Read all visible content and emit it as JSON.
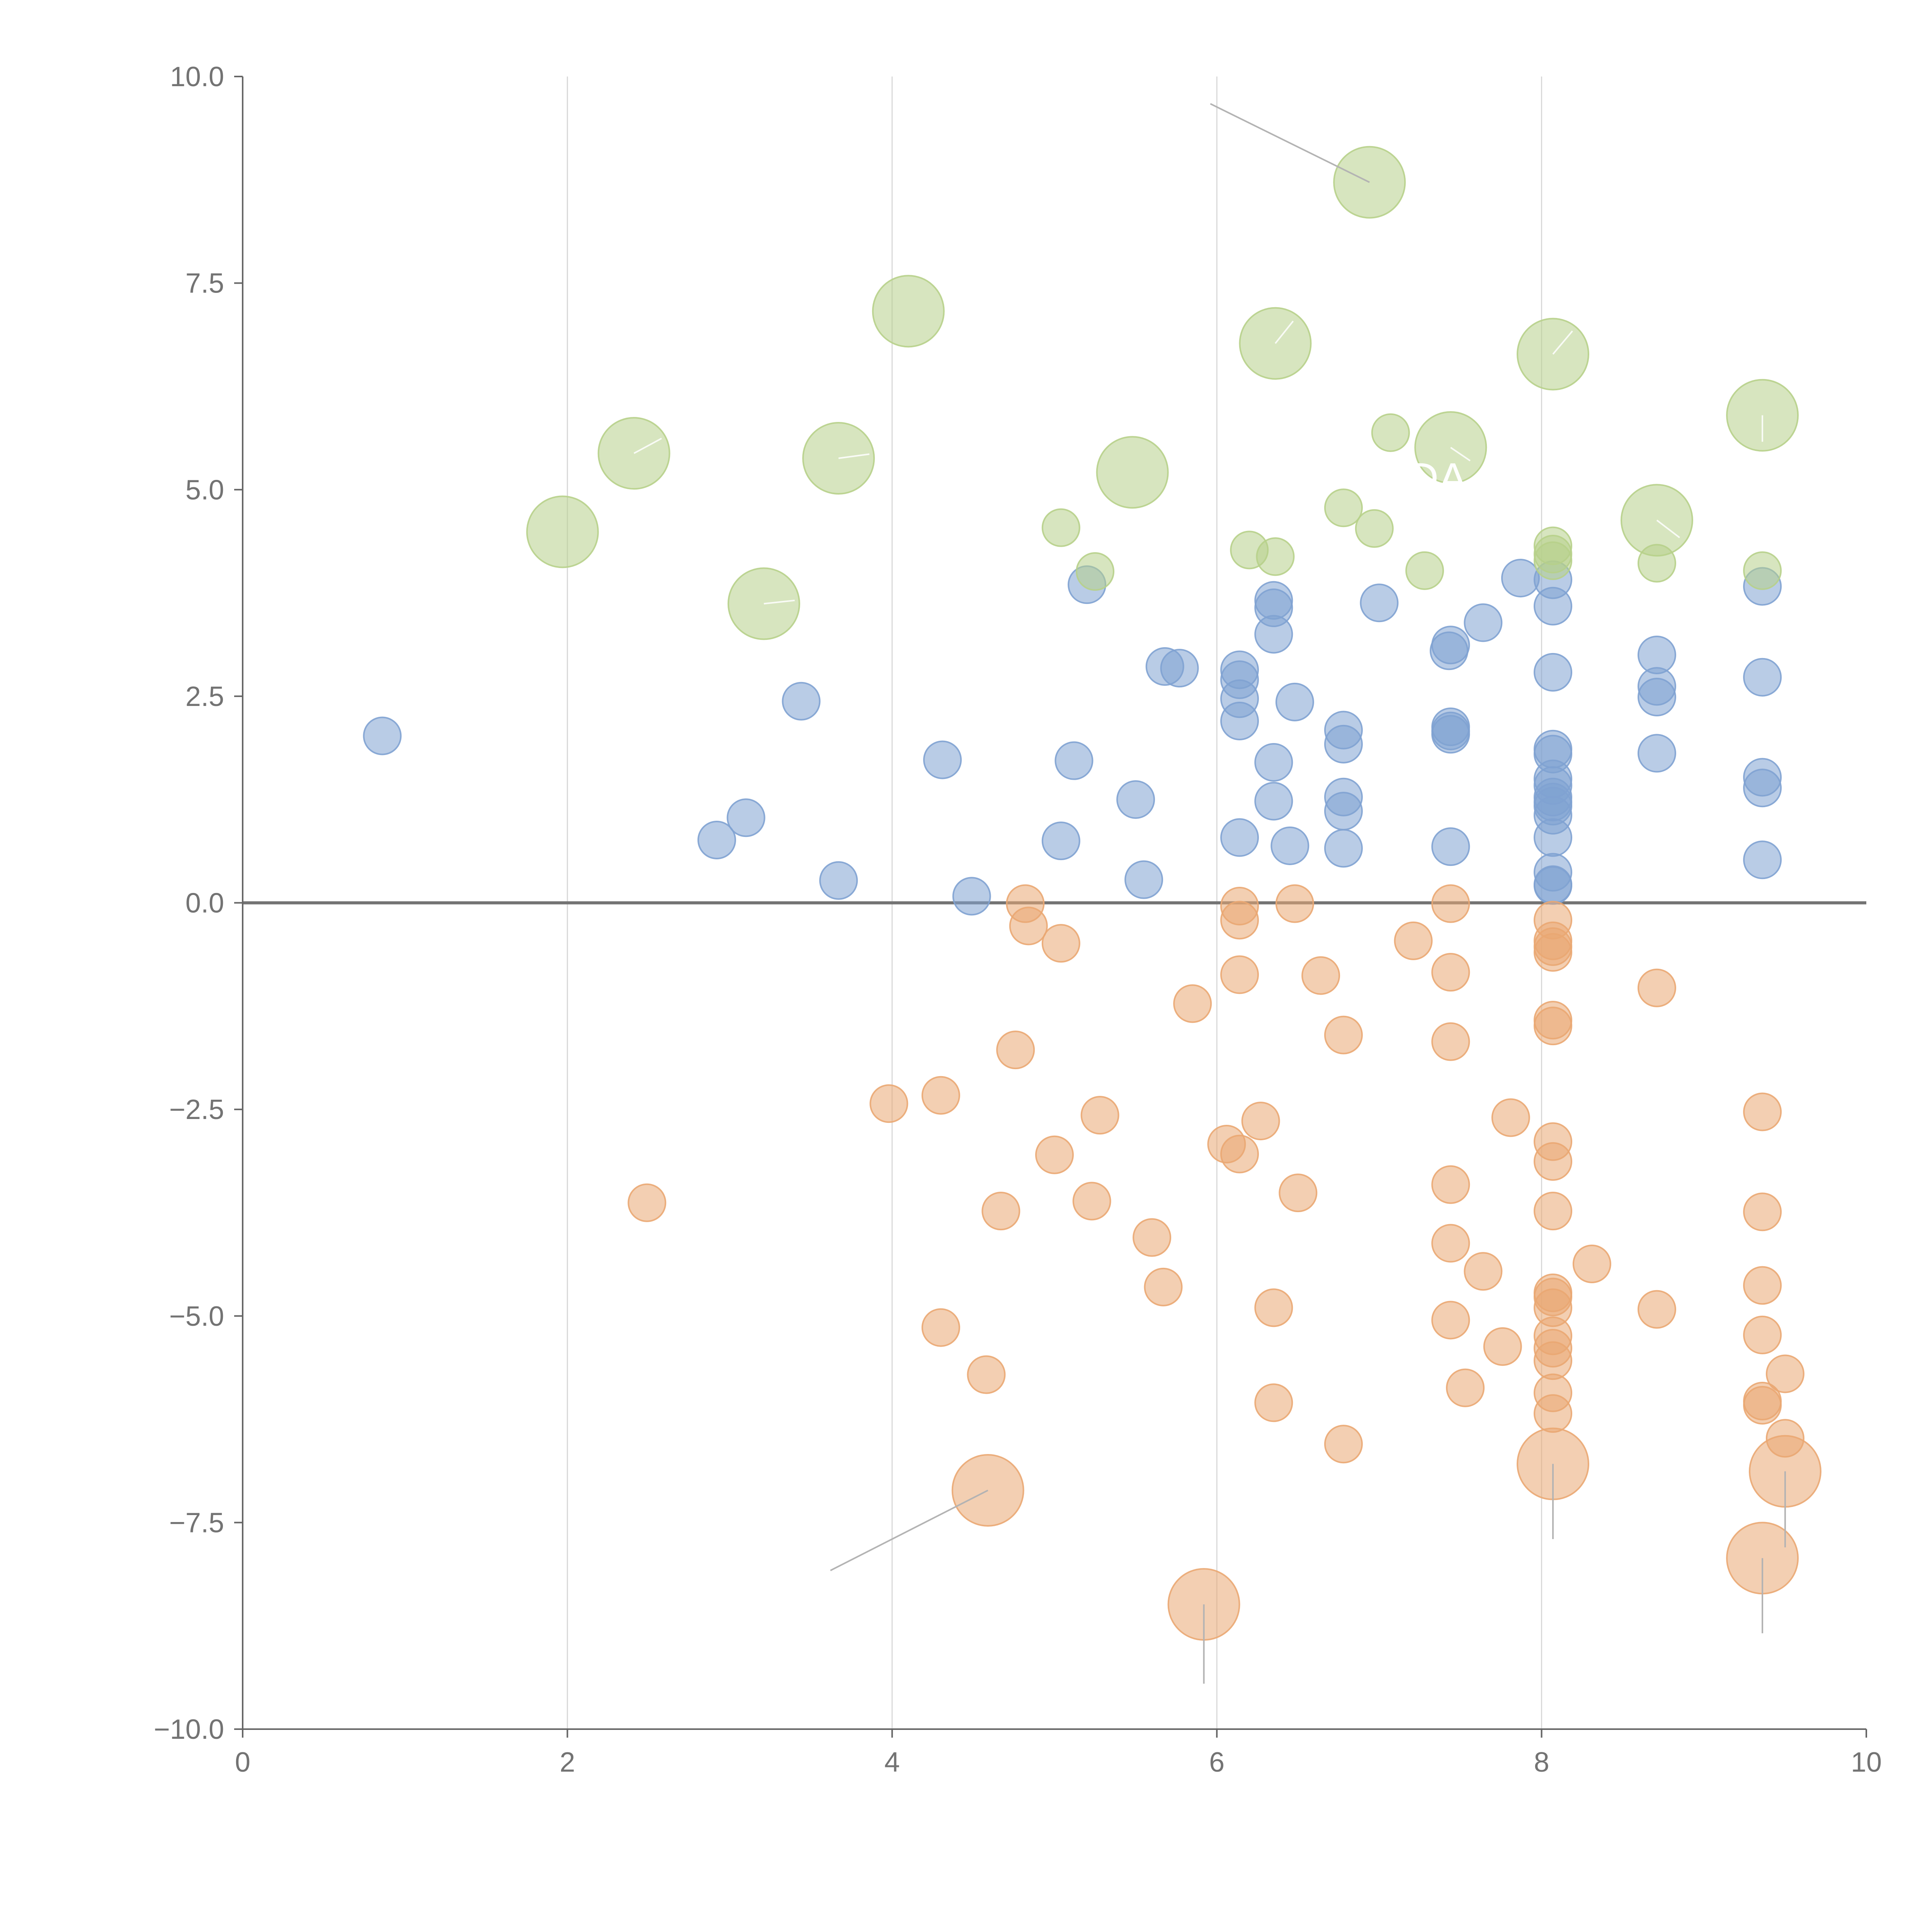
{
  "chart_data": {
    "type": "scatter",
    "title": "",
    "xlabel": "",
    "ylabel": "",
    "xlim": [
      0,
      10
    ],
    "ylim": [
      -10,
      10
    ],
    "x_ticks": [
      0,
      2,
      4,
      6,
      8,
      10
    ],
    "x_tick_labels": [
      "0",
      "2",
      "4",
      "6",
      "8",
      "10"
    ],
    "y_ticks": [
      -10,
      -7.5,
      -5,
      -2.5,
      0,
      2.5,
      5,
      7.5,
      10
    ],
    "y_tick_labels": [
      "−10.0",
      "−7.5",
      "−5.0",
      "−2.5",
      "0.0",
      "2.5",
      "5.0",
      "7.5",
      "10.0"
    ],
    "vertical_gridlines_at": [
      2,
      4,
      6,
      8
    ],
    "reference_line_y": 0,
    "colors": {
      "positive": "#7fa2d1",
      "negative": "#eaa772",
      "highlight": "#b7d08a",
      "axis": "#666666",
      "grid": "#d9d9d9",
      "tick_text": "#737373",
      "leader": "#b3b3b3"
    },
    "annotations": [
      "DA"
    ],
    "series": [
      {
        "name": "positive",
        "color_key": "positive",
        "points": [
          [
            0.86,
            2.02
          ],
          [
            2.92,
            0.76
          ],
          [
            3.1,
            1.03
          ],
          [
            3.44,
            2.44
          ],
          [
            3.67,
            0.27
          ],
          [
            4.31,
            1.73
          ],
          [
            4.49,
            0.08
          ],
          [
            5.04,
            0.75
          ],
          [
            5.12,
            1.72
          ],
          [
            5.2,
            3.85
          ],
          [
            5.5,
            1.25
          ],
          [
            5.55,
            0.28
          ],
          [
            5.68,
            2.86
          ],
          [
            5.77,
            2.84
          ],
          [
            6.14,
            2.82
          ],
          [
            6.14,
            2.7
          ],
          [
            6.14,
            2.47
          ],
          [
            6.14,
            2.2
          ],
          [
            6.14,
            0.79
          ],
          [
            6.35,
            3.66
          ],
          [
            6.35,
            3.57
          ],
          [
            6.35,
            3.25
          ],
          [
            6.35,
            1.7
          ],
          [
            6.35,
            1.23
          ],
          [
            6.45,
            0.69
          ],
          [
            6.48,
            2.43
          ],
          [
            6.78,
            2.09
          ],
          [
            6.78,
            1.92
          ],
          [
            6.78,
            1.28
          ],
          [
            6.78,
            1.11
          ],
          [
            6.78,
            0.66
          ],
          [
            7.0,
            3.63
          ],
          [
            7.43,
            3.05
          ],
          [
            7.44,
            3.12
          ],
          [
            7.44,
            2.13
          ],
          [
            7.44,
            2.08
          ],
          [
            7.44,
            2.04
          ],
          [
            7.44,
            0.68
          ],
          [
            7.64,
            3.39
          ],
          [
            7.87,
            3.93
          ],
          [
            8.07,
            3.91
          ],
          [
            8.07,
            3.59
          ],
          [
            8.07,
            2.79
          ],
          [
            8.07,
            1.86
          ],
          [
            8.07,
            1.8
          ],
          [
            8.07,
            1.5
          ],
          [
            8.07,
            1.42
          ],
          [
            8.07,
            1.28
          ],
          [
            8.07,
            1.22
          ],
          [
            8.07,
            1.17
          ],
          [
            8.07,
            1.06
          ],
          [
            8.07,
            0.79
          ],
          [
            8.07,
            0.37
          ],
          [
            8.07,
            0.22
          ],
          [
            8.07,
            0.21
          ],
          [
            8.71,
            3.0
          ],
          [
            8.71,
            2.62
          ],
          [
            8.71,
            2.49
          ],
          [
            8.71,
            1.81
          ],
          [
            9.36,
            3.83
          ],
          [
            9.36,
            2.73
          ],
          [
            9.36,
            1.52
          ],
          [
            9.36,
            1.39
          ],
          [
            9.36,
            0.52
          ]
        ]
      },
      {
        "name": "negative",
        "color_key": "negative",
        "points": [
          [
            2.49,
            -3.63
          ],
          [
            3.98,
            -2.43
          ],
          [
            4.3,
            -2.33
          ],
          [
            4.3,
            -5.14
          ],
          [
            4.58,
            -5.71
          ],
          [
            4.67,
            -3.73
          ],
          [
            4.76,
            -1.78
          ],
          [
            4.82,
            -0.01
          ],
          [
            4.84,
            -0.28
          ],
          [
            5.04,
            -0.49
          ],
          [
            5.0,
            -3.05
          ],
          [
            5.23,
            -3.61
          ],
          [
            5.28,
            -2.57
          ],
          [
            5.6,
            -4.05
          ],
          [
            5.67,
            -4.65
          ],
          [
            5.85,
            -1.22
          ],
          [
            6.06,
            -2.92
          ],
          [
            6.14,
            -3.04
          ],
          [
            6.14,
            -0.04
          ],
          [
            6.14,
            -0.21
          ],
          [
            6.14,
            -0.87
          ],
          [
            6.27,
            -2.64
          ],
          [
            6.35,
            -4.9
          ],
          [
            6.35,
            -6.05
          ],
          [
            6.48,
            -0.01
          ],
          [
            6.5,
            -3.51
          ],
          [
            6.64,
            -0.88
          ],
          [
            6.78,
            -1.6
          ],
          [
            6.78,
            -6.55
          ],
          [
            7.21,
            -0.46
          ],
          [
            7.44,
            -0.01
          ],
          [
            7.44,
            -0.84
          ],
          [
            7.44,
            -1.68
          ],
          [
            7.44,
            -3.41
          ],
          [
            7.44,
            -4.12
          ],
          [
            7.44,
            -5.05
          ],
          [
            7.53,
            -5.87
          ],
          [
            7.64,
            -4.46
          ],
          [
            7.76,
            -5.37
          ],
          [
            7.81,
            -2.6
          ],
          [
            8.07,
            -0.21
          ],
          [
            8.07,
            -0.46
          ],
          [
            8.07,
            -0.53
          ],
          [
            8.07,
            -0.6
          ],
          [
            8.07,
            -1.42
          ],
          [
            8.07,
            -1.49
          ],
          [
            8.07,
            -2.89
          ],
          [
            8.07,
            -3.13
          ],
          [
            8.07,
            -3.73
          ],
          [
            8.07,
            -4.72
          ],
          [
            8.07,
            -4.77
          ],
          [
            8.07,
            -4.9
          ],
          [
            8.07,
            -5.24
          ],
          [
            8.07,
            -5.39
          ],
          [
            8.07,
            -5.54
          ],
          [
            8.07,
            -5.93
          ],
          [
            8.07,
            -6.18
          ],
          [
            8.31,
            -4.37
          ],
          [
            8.71,
            -1.03
          ],
          [
            8.71,
            -4.92
          ],
          [
            9.36,
            -2.53
          ],
          [
            9.36,
            -3.74
          ],
          [
            9.36,
            -4.63
          ],
          [
            9.36,
            -5.23
          ],
          [
            9.36,
            -6.03
          ],
          [
            9.36,
            -6.08
          ],
          [
            9.5,
            -5.7
          ],
          [
            9.5,
            -6.48
          ]
        ]
      },
      {
        "name": "highlight",
        "color_key": "highlight",
        "points": [
          [
            5.04,
            4.54
          ],
          [
            5.25,
            4.01
          ],
          [
            6.2,
            4.27
          ],
          [
            6.36,
            4.19
          ],
          [
            6.78,
            4.78
          ],
          [
            6.97,
            4.53
          ],
          [
            7.07,
            5.69
          ],
          [
            7.28,
            4.02
          ],
          [
            8.07,
            4.32
          ],
          [
            8.07,
            4.22
          ],
          [
            8.07,
            4.14
          ],
          [
            8.71,
            4.11
          ],
          [
            9.36,
            4.02
          ]
        ]
      }
    ],
    "large_points": [
      {
        "x": 1.97,
        "y": 4.49,
        "series": "highlight"
      },
      {
        "x": 2.41,
        "y": 5.44,
        "series": "highlight"
      },
      {
        "x": 3.21,
        "y": 3.62,
        "series": "highlight"
      },
      {
        "x": 3.67,
        "y": 5.38,
        "series": "highlight"
      },
      {
        "x": 4.1,
        "y": 7.16,
        "series": "highlight"
      },
      {
        "x": 5.48,
        "y": 5.21,
        "series": "highlight"
      },
      {
        "x": 6.36,
        "y": 6.77,
        "series": "highlight"
      },
      {
        "x": 6.94,
        "y": 8.72,
        "series": "highlight"
      },
      {
        "x": 7.44,
        "y": 5.51,
        "series": "highlight"
      },
      {
        "x": 8.07,
        "y": 6.64,
        "series": "highlight"
      },
      {
        "x": 8.71,
        "y": 4.63,
        "series": "highlight"
      },
      {
        "x": 9.36,
        "y": 5.9,
        "series": "highlight"
      },
      {
        "x": 4.59,
        "y": -7.11,
        "series": "negative"
      },
      {
        "x": 5.92,
        "y": -8.49,
        "series": "negative"
      },
      {
        "x": 8.07,
        "y": -6.79,
        "series": "negative"
      },
      {
        "x": 9.36,
        "y": -7.93,
        "series": "negative"
      },
      {
        "x": 9.5,
        "y": -6.88,
        "series": "negative"
      }
    ],
    "leaders": [
      {
        "from": [
          6.94,
          8.72
        ],
        "to": [
          5.96,
          9.67
        ],
        "style": "dark"
      },
      {
        "from": [
          4.59,
          -7.11
        ],
        "to": [
          3.62,
          -8.08
        ],
        "style": "dark"
      },
      {
        "from": [
          5.92,
          -8.49
        ],
        "to": [
          5.92,
          -9.45
        ],
        "style": "dark"
      },
      {
        "from": [
          8.07,
          -6.79
        ],
        "to": [
          8.07,
          -7.7
        ],
        "style": "dark"
      },
      {
        "from": [
          9.36,
          -7.93
        ],
        "to": [
          9.36,
          -8.84
        ],
        "style": "dark"
      },
      {
        "from": [
          9.5,
          -6.88
        ],
        "to": [
          9.5,
          -7.8
        ],
        "style": "dark"
      },
      {
        "from": [
          2.41,
          5.44
        ],
        "to": [
          2.58,
          5.62
        ],
        "style": "light"
      },
      {
        "from": [
          3.21,
          3.62
        ],
        "to": [
          3.4,
          3.66
        ],
        "style": "light"
      },
      {
        "from": [
          3.67,
          5.38
        ],
        "to": [
          3.86,
          5.43
        ],
        "style": "light"
      },
      {
        "from": [
          6.36,
          6.77
        ],
        "to": [
          6.47,
          7.04
        ],
        "style": "light"
      },
      {
        "from": [
          7.44,
          5.51
        ],
        "to": [
          7.56,
          5.35
        ],
        "style": "light"
      },
      {
        "from": [
          8.07,
          6.64
        ],
        "to": [
          8.19,
          6.92
        ],
        "style": "light"
      },
      {
        "from": [
          8.71,
          4.63
        ],
        "to": [
          8.85,
          4.42
        ],
        "style": "light"
      },
      {
        "from": [
          9.36,
          5.9
        ],
        "to": [
          9.36,
          5.58
        ],
        "style": "light"
      }
    ]
  }
}
